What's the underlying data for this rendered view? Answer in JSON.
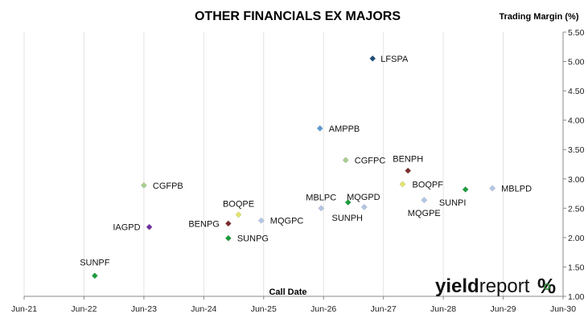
{
  "chart_data": {
    "type": "scatter",
    "title": "OTHER FINANCIALS EX MAJORS",
    "ylabel": "Trading Margin (%)",
    "xlabel": "Call Date",
    "x_ticks": [
      "Jun-21",
      "Jun-22",
      "Jun-23",
      "Jun-24",
      "Jun-25",
      "Jun-26",
      "Jun-27",
      "Jun-28",
      "Jun-29",
      "Jun-30"
    ],
    "y_ticks": [
      "1.00",
      "1.50",
      "2.00",
      "2.50",
      "3.00",
      "3.50",
      "4.00",
      "4.50",
      "5.00",
      "5.50"
    ],
    "ylim": [
      1.0,
      5.5
    ],
    "xlim": [
      0,
      9
    ],
    "y_axis_side": "right",
    "grid": "vertical",
    "points": [
      {
        "label": "LFSPA",
        "x": 5.82,
        "y": 5.05,
        "color": "#1f4e79"
      },
      {
        "label": "AMPPB",
        "x": 4.94,
        "y": 3.86,
        "color": "#5b9bd5"
      },
      {
        "label": "CGFPC",
        "x": 5.37,
        "y": 3.32,
        "color": "#a9d08e"
      },
      {
        "label": "BENPH",
        "x": 6.41,
        "y": 3.14,
        "color": "#7b2c2c"
      },
      {
        "label": "BOQPF",
        "x": 6.32,
        "y": 2.91,
        "color": "#e6e66a"
      },
      {
        "label": "SUNPI",
        "x": 7.37,
        "y": 2.82,
        "color": "#1a9e3a"
      },
      {
        "label": "MBLPD",
        "x": 7.82,
        "y": 2.84,
        "color": "#b4c7e7"
      },
      {
        "label": "CGFPB",
        "x": 2.0,
        "y": 2.89,
        "color": "#a9d08e"
      },
      {
        "label": "MQGPE",
        "x": 6.68,
        "y": 2.64,
        "color": "#b4c7e7"
      },
      {
        "label": "MQGPD",
        "x": 5.68,
        "y": 2.52,
        "color": "#b4c7e7"
      },
      {
        "label": "MBLPC",
        "x": 4.96,
        "y": 2.5,
        "color": "#b4c7e7"
      },
      {
        "label": "SUNPH",
        "x": 5.41,
        "y": 2.6,
        "color": "#1a9e3a"
      },
      {
        "label": "BOQPE",
        "x": 3.58,
        "y": 2.39,
        "color": "#e6e66a"
      },
      {
        "label": "MQGPC",
        "x": 3.96,
        "y": 2.29,
        "color": "#b4c7e7"
      },
      {
        "label": "BENPG",
        "x": 3.41,
        "y": 2.24,
        "color": "#7b2c2c"
      },
      {
        "label": "IAGPD",
        "x": 2.09,
        "y": 2.18,
        "color": "#7030a0"
      },
      {
        "label": "SUNPG",
        "x": 3.41,
        "y": 1.99,
        "color": "#1a9e3a"
      },
      {
        "label": "SUNPF",
        "x": 1.18,
        "y": 1.35,
        "color": "#1a9e3a"
      }
    ]
  },
  "brand": {
    "part1": "yield",
    "part2": "report",
    "percent": "%",
    "percent_color": "#c00000",
    "ring_color": "#2e8b3a"
  }
}
